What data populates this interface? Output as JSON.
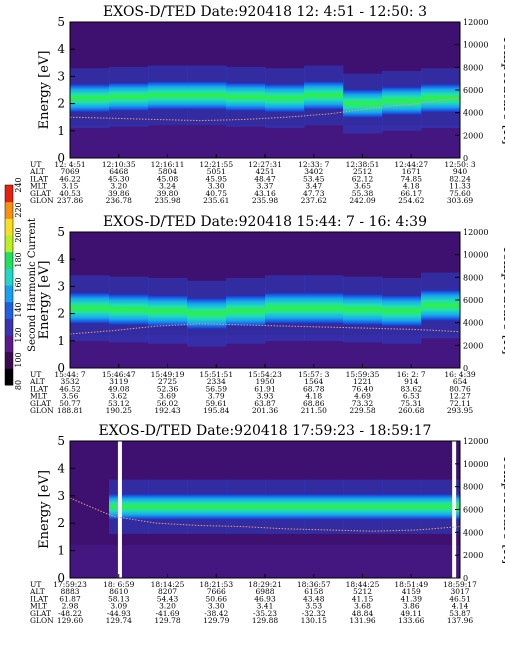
{
  "colorbar": {
    "label": "Second Harmonic Current",
    "ticks": [
      "80",
      "100",
      "120",
      "140",
      "160",
      "180",
      "200",
      "220",
      "240"
    ],
    "min": 80,
    "max": 240,
    "colors": [
      "#000000",
      "#3a0a52",
      "#5a1a8c",
      "#3a34b0",
      "#1f5fe0",
      "#1aa0ee",
      "#20d8c8",
      "#20e060",
      "#b8f020",
      "#f8e020",
      "#f89010",
      "#e82010"
    ]
  },
  "panels": [
    {
      "title": "EXOS-D/TED   Date:920418  12: 4:51 - 12:50: 3",
      "ylabel_left": "Energy [eV]",
      "ylabel_right": "Temperature [K]",
      "ylim": [
        0,
        5
      ],
      "yticks": [
        "0",
        "1",
        "2",
        "3",
        "4",
        "5"
      ],
      "ylim_right": [
        0,
        12000
      ],
      "yticks_right": [
        "0",
        "2000",
        "4000",
        "6000",
        "8000",
        "10000",
        "12000"
      ],
      "band": {
        "center": [
          2.2,
          2.25,
          2.3,
          2.3,
          2.25,
          2.2,
          2.3,
          2.0,
          2.1,
          2.2
        ],
        "width": 0.5
      },
      "temperature": [
        3600,
        3500,
        3400,
        3300,
        3400,
        3600,
        3900,
        4400,
        4800,
        5300
      ],
      "gaps": [],
      "table": {
        "labels": [
          "UT",
          "ALT",
          "ILAT",
          "MLT",
          "GLAT",
          "GLON"
        ],
        "columns": [
          [
            "12: 4:51",
            "7069",
            "46.22",
            "3.15",
            "40.53",
            "237.86"
          ],
          [
            "12:10:35",
            "6468",
            "45.30",
            "3.20",
            "39.86",
            "236.78"
          ],
          [
            "12:16:11",
            "5804",
            "45.08",
            "3.24",
            "39.80",
            "235.98"
          ],
          [
            "12:21:55",
            "5051",
            "45.95",
            "3.30",
            "40.75",
            "235.61"
          ],
          [
            "12:27:31",
            "4251",
            "48.47",
            "3.37",
            "43.16",
            "235.98"
          ],
          [
            "12:33: 7",
            "3402",
            "53.45",
            "3.47",
            "47.73",
            "237.62"
          ],
          [
            "12:38:51",
            "2512",
            "62.12",
            "3.65",
            "55.38",
            "242.09"
          ],
          [
            "12:44:27",
            "1671",
            "74.85",
            "4.18",
            "66.17",
            "254.62"
          ],
          [
            "12:50: 3",
            "940",
            "82.24",
            "11.33",
            "75.60",
            "303.69"
          ]
        ]
      }
    },
    {
      "title": "EXOS-D/TED   Date:920418  15:44: 7 - 16: 4:39",
      "ylabel_left": "Energy [eV]",
      "ylabel_right": "Temperature [K]",
      "ylim": [
        0,
        5
      ],
      "yticks": [
        "0",
        "1",
        "2",
        "3",
        "4",
        "5"
      ],
      "ylim_right": [
        0,
        12000
      ],
      "yticks_right": [
        "0",
        "2000",
        "4000",
        "6000",
        "8000",
        "10000",
        "12000"
      ],
      "band": {
        "center": [
          2.2,
          2.15,
          2.1,
          2.0,
          2.1,
          2.2,
          2.2,
          2.15,
          2.1,
          2.3
        ],
        "width": 0.55
      },
      "temperature": [
        3000,
        3300,
        3700,
        3900,
        3800,
        3700,
        3600,
        3500,
        3400,
        3200
      ],
      "gaps": [],
      "table": {
        "labels": [
          "UT",
          "ALT",
          "ILAT",
          "MLT",
          "GLAT",
          "GLON"
        ],
        "columns": [
          [
            "15:44: 7",
            "3532",
            "46.52",
            "3.56",
            "50.77",
            "188.81"
          ],
          [
            "15:46:47",
            "3119",
            "49.08",
            "3.62",
            "53.12",
            "190.25"
          ],
          [
            "15:49:19",
            "2725",
            "52.36",
            "3.69",
            "56.02",
            "192.43"
          ],
          [
            "15:51:51",
            "2334",
            "56.59",
            "3.79",
            "59.61",
            "195.84"
          ],
          [
            "15:54:23",
            "1950",
            "61.91",
            "3.93",
            "63.87",
            "201.36"
          ],
          [
            "15:57: 3",
            "1564",
            "68.78",
            "4.18",
            "68.86",
            "211.50"
          ],
          [
            "15:59:35",
            "1221",
            "76.40",
            "4.69",
            "73.32",
            "229.58"
          ],
          [
            "16: 2: 7",
            "914",
            "83.62",
            "6.53",
            "75.31",
            "260.68"
          ],
          [
            "16: 4:39",
            "654",
            "80.76",
            "12.27",
            "72.11",
            "293.95"
          ]
        ]
      }
    },
    {
      "title": "EXOS-D/TED   Date:920418  17:59:23 - 18:59:17",
      "ylabel_left": "Energy [eV]",
      "ylabel_right": "Temperature [K]",
      "ylim": [
        0,
        5
      ],
      "yticks": [
        "0",
        "1",
        "2",
        "3",
        "4",
        "5"
      ],
      "ylim_right": [
        0,
        12000
      ],
      "yticks_right": [
        "0",
        "2000",
        "4000",
        "6000",
        "8000",
        "10000",
        "12000"
      ],
      "band": {
        "center": [
          null,
          2.6,
          2.6,
          2.6,
          2.6,
          2.6,
          2.6,
          2.6,
          2.6,
          2.6
        ],
        "width": 0.45
      },
      "temperature": [
        7000,
        5400,
        4800,
        4600,
        4500,
        4300,
        4200,
        4100,
        4200,
        4500
      ],
      "gaps": [
        0.128,
        0.985
      ],
      "table": {
        "labels": [
          "UT",
          "ALT",
          "ILAT",
          "MLT",
          "GLAT",
          "GLON"
        ],
        "columns": [
          [
            "17:59:23",
            "8883",
            "61.87",
            "2.98",
            "-48.22",
            "129.60"
          ],
          [
            "18: 6:59",
            "8610",
            "58.13",
            "3.09",
            "-44.93",
            "129.74"
          ],
          [
            "18:14:25",
            "8207",
            "54.43",
            "3.20",
            "-41.69",
            "129.78"
          ],
          [
            "18:21:53",
            "7666",
            "50.66",
            "3.30",
            "-38.42",
            "129.79"
          ],
          [
            "18:29:21",
            "6988",
            "46.93",
            "3.41",
            "-35.23",
            "129.88"
          ],
          [
            "18:36:57",
            "6158",
            "43.48",
            "3.53",
            "-32.32",
            "130.15"
          ],
          [
            "18:44:25",
            "5212",
            "41.15",
            "3.68",
            "48.84",
            "131.96"
          ],
          [
            "18:51:49",
            "4159",
            "41.39",
            "3.86",
            "49.11",
            "133.66"
          ],
          [
            "18:59:17",
            "3017",
            "46.51",
            "4.14",
            "53.87",
            "137.96"
          ]
        ]
      }
    }
  ]
}
